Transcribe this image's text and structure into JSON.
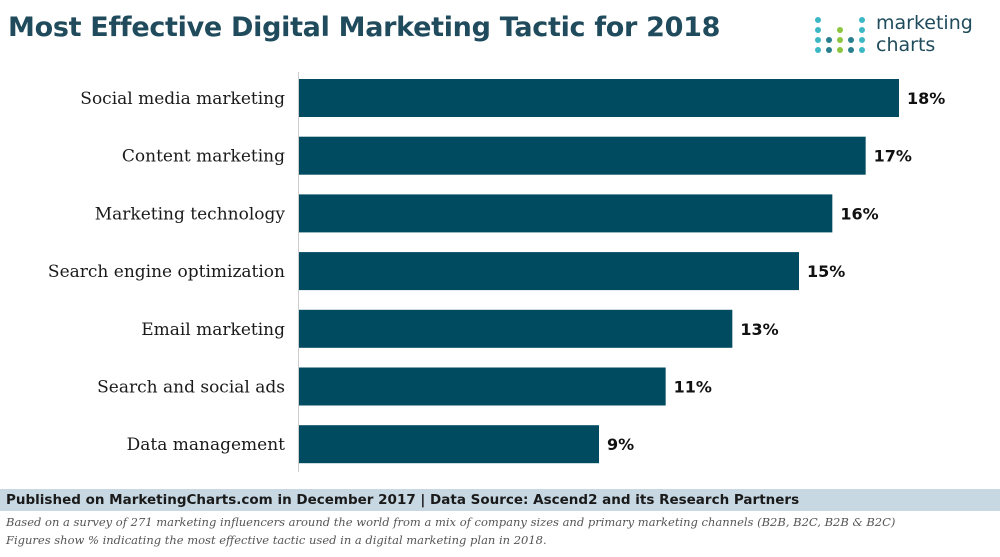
{
  "title": "Most Effective Digital Marketing Tactic for 2018",
  "logo": {
    "line1": "marketing",
    "line2": "charts"
  },
  "colors": {
    "bar": "#004b60",
    "title": "#1f4b5c",
    "footer_band": "#c8d8e2"
  },
  "chart_data": {
    "type": "bar",
    "orientation": "horizontal",
    "title": "Most Effective Digital Marketing Tactic for 2018",
    "categories": [
      "Social media marketing",
      "Content marketing",
      "Marketing technology",
      "Search engine optimization",
      "Email marketing",
      "Search and social ads",
      "Data management"
    ],
    "values": [
      18,
      17,
      16,
      15,
      13,
      11,
      9
    ],
    "value_labels": [
      "18%",
      "17%",
      "16%",
      "15%",
      "13%",
      "11%",
      "9%"
    ],
    "xlim": [
      0,
      18
    ],
    "unit": "%",
    "grid": false
  },
  "footer": {
    "published": "Published on MarketingCharts.com in December 2017 | Data Source: Ascend2 and its Research Partners",
    "note1": "Based on a survey of 271 marketing influencers around the world from a mix of company sizes and primary marketing channels (B2B, B2C, B2B & B2C)",
    "note2": "Figures show % indicating the most effective tactic used in a digital marketing plan in 2018."
  }
}
